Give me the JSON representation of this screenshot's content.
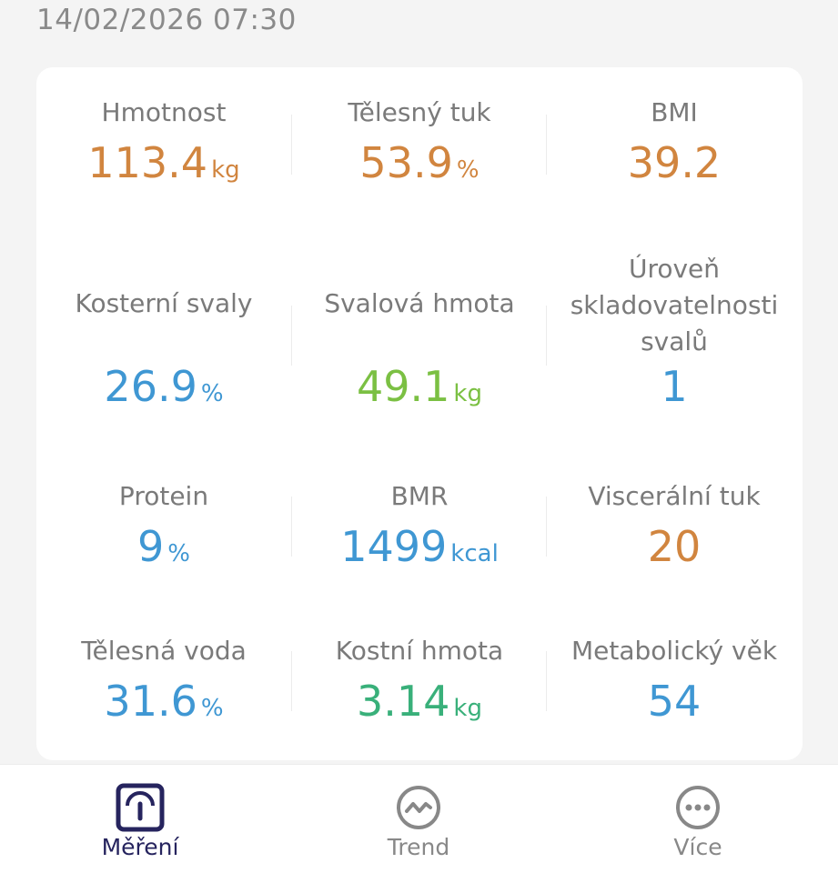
{
  "header": {
    "datetime": "14/02/2026 07:30"
  },
  "metrics": [
    {
      "label": "Hmotnost",
      "value": "113.4",
      "unit": "kg",
      "color": "#d1853f"
    },
    {
      "label": "Tělesný tuk",
      "value": "53.9",
      "unit": "%",
      "color": "#d1853f"
    },
    {
      "label": "BMI",
      "value": "39.2",
      "unit": "",
      "color": "#d1853f"
    },
    {
      "label": "Kosterní svaly",
      "value": "26.9",
      "unit": "%",
      "color": "#3f97d3"
    },
    {
      "label": "Svalová hmota",
      "value": "49.1",
      "unit": "kg",
      "color": "#7bc043"
    },
    {
      "label_lines": [
        "Úroveň",
        "skladovatelnosti",
        "svalů"
      ],
      "value": "1",
      "unit": "",
      "color": "#3f97d3"
    },
    {
      "label": "Protein",
      "value": "9",
      "unit": "%",
      "color": "#3f97d3"
    },
    {
      "label": "BMR",
      "value": "1499",
      "unit": "kcal",
      "color": "#3f97d3"
    },
    {
      "label": "Viscerální tuk",
      "value": "20",
      "unit": "",
      "color": "#d1853f"
    },
    {
      "label": "Tělesná voda",
      "value": "31.6",
      "unit": "%",
      "color": "#3f97d3"
    },
    {
      "label": "Kostní hmota",
      "value": "3.14",
      "unit": "kg",
      "color": "#39b07a"
    },
    {
      "label": "Metabolický věk",
      "value": "54",
      "unit": "",
      "color": "#3f97d3"
    }
  ],
  "tabs": [
    {
      "label": "Měření",
      "icon": "scale-icon",
      "active": true
    },
    {
      "label": "Trend",
      "icon": "trend-icon",
      "active": false
    },
    {
      "label": "Více",
      "icon": "more-icon",
      "active": false
    }
  ]
}
